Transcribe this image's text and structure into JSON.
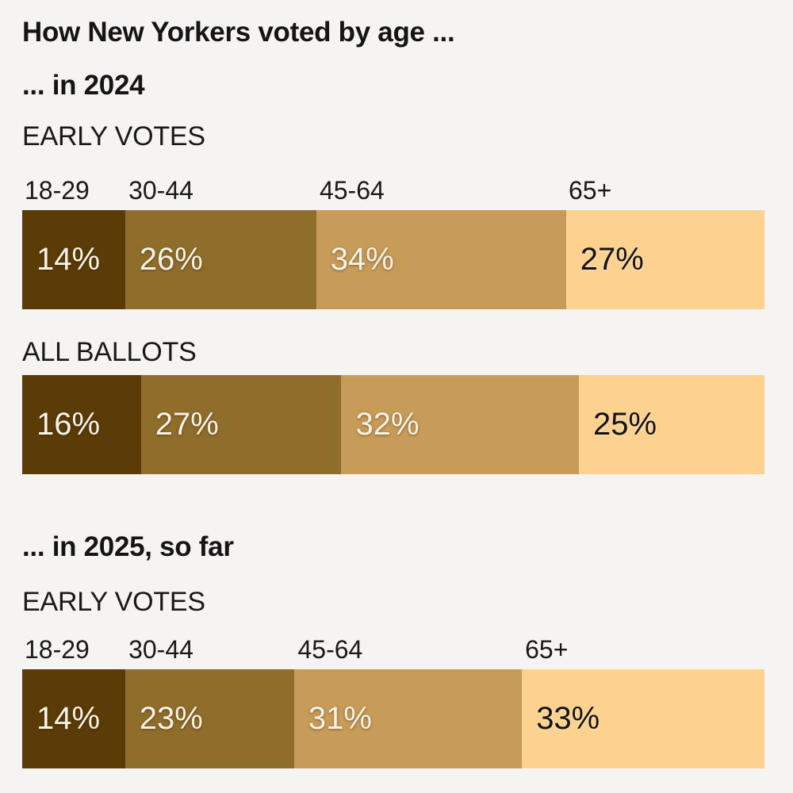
{
  "page": {
    "background_color": "#f5f4f2",
    "text_color": "#151515"
  },
  "title": "How New Yorkers voted by age ...",
  "sections": [
    {
      "heading": "... in 2024",
      "charts": [
        {
          "label": "EARLY VOTES"
        },
        {
          "label": "ALL BALLOTS"
        }
      ]
    },
    {
      "heading": "... in 2025, so far",
      "charts": [
        {
          "label": "EARLY VOTES"
        }
      ]
    }
  ],
  "chart_data": {
    "type": "bar",
    "subtype": "horizontal-stacked-100pct",
    "title": "How New Yorkers voted by age ...",
    "categories": [
      "18-29",
      "30-44",
      "45-64",
      "65+"
    ],
    "unit": "%",
    "groups": [
      {
        "section": "... in 2024",
        "label": "EARLY VOTES",
        "values": [
          14,
          26,
          34,
          27
        ]
      },
      {
        "section": "... in 2024",
        "label": "ALL BALLOTS",
        "values": [
          16,
          27,
          32,
          25
        ]
      },
      {
        "section": "... in 2025, so far",
        "label": "EARLY VOTES",
        "values": [
          14,
          23,
          31,
          33
        ]
      }
    ],
    "segment_colors": [
      "#5b3c06",
      "#8f6d2b",
      "#c79c58",
      "#fdd18e"
    ],
    "value_text_colors": [
      "#f9f3e7",
      "#f9f3e7",
      "#f9f3e7",
      "#141414"
    ],
    "value_label_format": "{value}%",
    "age_labels_position": "above first bar of each section, aligned to segment left edges",
    "grid": false,
    "legend_position": "none"
  }
}
